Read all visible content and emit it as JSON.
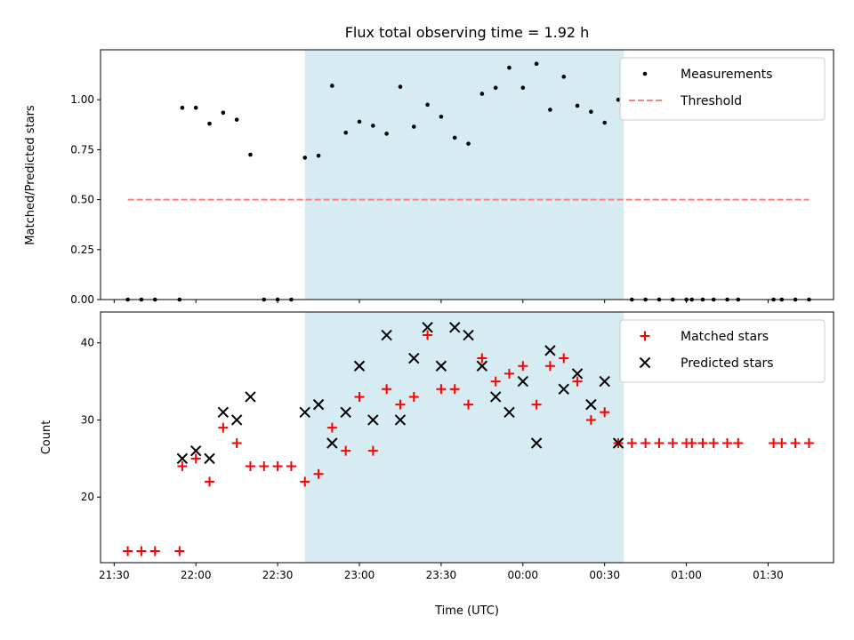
{
  "chart_data": [
    {
      "type": "scatter",
      "title": "Flux total observing time = 1.92 h",
      "xlabel": "",
      "ylabel": "Matched/Predicted stars",
      "ylim": [
        0,
        1.25
      ],
      "yticks": [
        "0.00",
        "0.25",
        "0.50",
        "0.75",
        "1.00"
      ],
      "shaded_region": [
        "22:40",
        "00:37"
      ],
      "shade_color": "#add8e6",
      "legend_position": "top-right",
      "series": [
        {
          "name": "Measurements",
          "marker": "dot",
          "color": "#000000",
          "points": [
            [
              "21:35",
              0.0
            ],
            [
              "21:40",
              0.0
            ],
            [
              "21:45",
              0.0
            ],
            [
              "21:54",
              0.0
            ],
            [
              "21:55",
              0.96
            ],
            [
              "22:00",
              0.96
            ],
            [
              "22:05",
              0.88
            ],
            [
              "22:10",
              0.935
            ],
            [
              "22:15",
              0.9
            ],
            [
              "22:20",
              0.725
            ],
            [
              "22:25",
              0.0
            ],
            [
              "22:30",
              0.0
            ],
            [
              "22:35",
              0.0
            ],
            [
              "22:40",
              0.71
            ],
            [
              "22:45",
              0.72
            ],
            [
              "22:50",
              1.07
            ],
            [
              "22:55",
              0.835
            ],
            [
              "23:00",
              0.89
            ],
            [
              "23:05",
              0.87
            ],
            [
              "23:10",
              0.83
            ],
            [
              "23:15",
              1.065
            ],
            [
              "23:20",
              0.865
            ],
            [
              "23:25",
              0.975
            ],
            [
              "23:30",
              0.915
            ],
            [
              "23:35",
              0.81
            ],
            [
              "23:40",
              0.78
            ],
            [
              "23:45",
              1.03
            ],
            [
              "23:50",
              1.06
            ],
            [
              "23:55",
              1.16
            ],
            [
              "00:00",
              1.06
            ],
            [
              "00:05",
              1.18
            ],
            [
              "00:10",
              0.95
            ],
            [
              "00:15",
              1.115
            ],
            [
              "00:20",
              0.97
            ],
            [
              "00:25",
              0.94
            ],
            [
              "00:30",
              0.885
            ],
            [
              "00:35",
              1.0
            ],
            [
              "00:40",
              0.0
            ],
            [
              "00:45",
              0.0
            ],
            [
              "00:50",
              0.0
            ],
            [
              "00:55",
              0.0
            ],
            [
              "01:00",
              0.0
            ],
            [
              "01:02",
              0.0
            ],
            [
              "01:06",
              0.0
            ],
            [
              "01:10",
              0.0
            ],
            [
              "01:15",
              0.0
            ],
            [
              "01:19",
              0.0
            ],
            [
              "01:32",
              0.0
            ],
            [
              "01:35",
              0.0
            ],
            [
              "01:40",
              0.0
            ],
            [
              "01:45",
              0.0
            ]
          ]
        },
        {
          "name": "Threshold",
          "marker": "dashed-line",
          "color": "#ff7f7f",
          "points": [
            [
              "21:35",
              0.5
            ],
            [
              "01:45",
              0.5
            ]
          ]
        }
      ]
    },
    {
      "type": "scatter",
      "title": "",
      "xlabel": "Time (UTC)",
      "ylabel": "Count",
      "ylim": [
        11.5,
        44
      ],
      "yticks": [
        "20",
        "30",
        "40"
      ],
      "xlim": [
        "21:25",
        "01:54"
      ],
      "xticks": [
        "21:30",
        "22:00",
        "22:30",
        "23:00",
        "23:30",
        "00:00",
        "00:30",
        "01:00",
        "01:30"
      ],
      "shaded_region": [
        "22:40",
        "00:37"
      ],
      "shade_color": "#add8e6",
      "legend_position": "top-right",
      "series": [
        {
          "name": "Matched stars",
          "marker": "plus",
          "color": "#ff0000",
          "points": [
            [
              "21:35",
              13
            ],
            [
              "21:40",
              13
            ],
            [
              "21:45",
              13
            ],
            [
              "21:54",
              13
            ],
            [
              "21:55",
              24
            ],
            [
              "22:00",
              25
            ],
            [
              "22:05",
              22
            ],
            [
              "22:10",
              29
            ],
            [
              "22:15",
              27
            ],
            [
              "22:20",
              24
            ],
            [
              "22:25",
              24
            ],
            [
              "22:30",
              24
            ],
            [
              "22:35",
              24
            ],
            [
              "22:40",
              22
            ],
            [
              "22:45",
              23
            ],
            [
              "22:50",
              29
            ],
            [
              "22:55",
              26
            ],
            [
              "23:00",
              33
            ],
            [
              "23:05",
              26
            ],
            [
              "23:10",
              34
            ],
            [
              "23:15",
              32
            ],
            [
              "23:20",
              33
            ],
            [
              "23:25",
              41
            ],
            [
              "23:30",
              34
            ],
            [
              "23:35",
              34
            ],
            [
              "23:40",
              32
            ],
            [
              "23:45",
              38
            ],
            [
              "23:50",
              35
            ],
            [
              "23:55",
              36
            ],
            [
              "00:00",
              37
            ],
            [
              "00:05",
              32
            ],
            [
              "00:10",
              37
            ],
            [
              "00:15",
              38
            ],
            [
              "00:20",
              35
            ],
            [
              "00:25",
              30
            ],
            [
              "00:30",
              31
            ],
            [
              "00:35",
              27
            ],
            [
              "00:40",
              27
            ],
            [
              "00:45",
              27
            ],
            [
              "00:50",
              27
            ],
            [
              "00:55",
              27
            ],
            [
              "01:00",
              27
            ],
            [
              "01:02",
              27
            ],
            [
              "01:06",
              27
            ],
            [
              "01:10",
              27
            ],
            [
              "01:15",
              27
            ],
            [
              "01:19",
              27
            ],
            [
              "01:32",
              27
            ],
            [
              "01:35",
              27
            ],
            [
              "01:40",
              27
            ],
            [
              "01:45",
              27
            ]
          ]
        },
        {
          "name": "Predicted stars",
          "marker": "x",
          "color": "#000000",
          "points": [
            [
              "21:55",
              25
            ],
            [
              "22:00",
              26
            ],
            [
              "22:05",
              25
            ],
            [
              "22:10",
              31
            ],
            [
              "22:15",
              30
            ],
            [
              "22:20",
              33
            ],
            [
              "22:40",
              31
            ],
            [
              "22:45",
              32
            ],
            [
              "22:50",
              27
            ],
            [
              "22:55",
              31
            ],
            [
              "23:00",
              37
            ],
            [
              "23:05",
              30
            ],
            [
              "23:10",
              41
            ],
            [
              "23:15",
              30
            ],
            [
              "23:20",
              38
            ],
            [
              "23:25",
              42
            ],
            [
              "23:30",
              37
            ],
            [
              "23:35",
              42
            ],
            [
              "23:40",
              41
            ],
            [
              "23:45",
              37
            ],
            [
              "23:50",
              33
            ],
            [
              "23:55",
              31
            ],
            [
              "00:00",
              35
            ],
            [
              "00:05",
              27
            ],
            [
              "00:10",
              39
            ],
            [
              "00:15",
              34
            ],
            [
              "00:20",
              36
            ],
            [
              "00:25",
              32
            ],
            [
              "00:30",
              35
            ],
            [
              "00:35",
              27
            ]
          ]
        }
      ]
    }
  ]
}
